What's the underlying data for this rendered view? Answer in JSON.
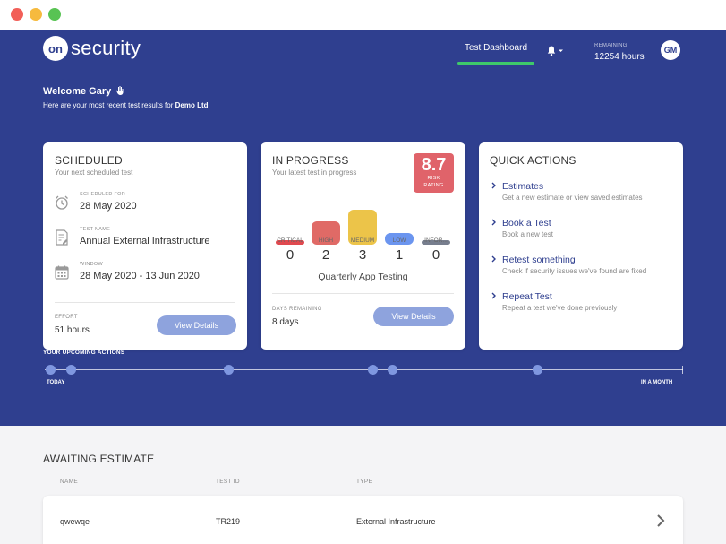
{
  "window": {
    "buttons": [
      "close",
      "minimize",
      "maximize"
    ]
  },
  "header": {
    "logo_mark": "on",
    "logo_text": "security",
    "nav_tab": "Test Dashboard",
    "remaining_label": "REMAINING",
    "remaining_value": "12254 hours",
    "avatar": "GM"
  },
  "welcome": {
    "title": "Welcome Gary",
    "subtitle": "Here are your most recent test results for",
    "company": "Demo Ltd"
  },
  "scheduled": {
    "title": "SCHEDULED",
    "subtitle": "Your next scheduled test",
    "items": [
      {
        "label": "SCHEDULED FOR",
        "value": "28 May 2020",
        "icon": "alarm-clock-icon"
      },
      {
        "label": "TEST NAME",
        "value": "Annual External Infrastructure",
        "icon": "document-edit-icon"
      },
      {
        "label": "WINDOW",
        "value": "28 May 2020 - 13 Jun 2020",
        "icon": "calendar-icon"
      }
    ],
    "effort_label": "EFFORT",
    "effort_value": "51 hours",
    "button": "View Details"
  },
  "in_progress": {
    "title": "IN PROGRESS",
    "subtitle": "Your latest test in progress",
    "risk_value": "8.7",
    "risk_label_1": "RISK",
    "risk_label_2": "RATING",
    "findings": [
      {
        "label": "CRITICAL",
        "count": "0",
        "color": "#e0494f"
      },
      {
        "label": "HIGH",
        "count": "2",
        "color": "#e06a66"
      },
      {
        "label": "MEDIUM",
        "count": "3",
        "color": "#ecc449"
      },
      {
        "label": "LOW",
        "count": "1",
        "color": "#6b95ef"
      },
      {
        "label": "INFOR...",
        "count": "0",
        "color": "#777e8e"
      }
    ],
    "test_name": "Quarterly App Testing",
    "days_label": "DAYS REMAINING",
    "days_value": "8 days",
    "button": "View Details"
  },
  "quick_actions": {
    "title": "QUICK ACTIONS",
    "items": [
      {
        "title": "Estimates",
        "subtitle": "Get a new estimate or view saved estimates"
      },
      {
        "title": "Book a Test",
        "subtitle": "Book a new test"
      },
      {
        "title": "Retest something",
        "subtitle": "Check if security issues we've found are fixed"
      },
      {
        "title": "Repeat Test",
        "subtitle": "Repeat a test we've done previously"
      }
    ]
  },
  "timeline": {
    "title": "YOUR UPCOMING ACTIONS",
    "start_label": "TODAY",
    "end_label": "IN A MONTH",
    "event_count": 7
  },
  "awaiting": {
    "title": "AWAITING ESTIMATE",
    "columns": [
      "NAME",
      "TEST ID",
      "TYPE"
    ],
    "rows": [
      {
        "name": "qwewqe",
        "test_id": "TR219",
        "type": "External Infrastructure"
      }
    ]
  }
}
